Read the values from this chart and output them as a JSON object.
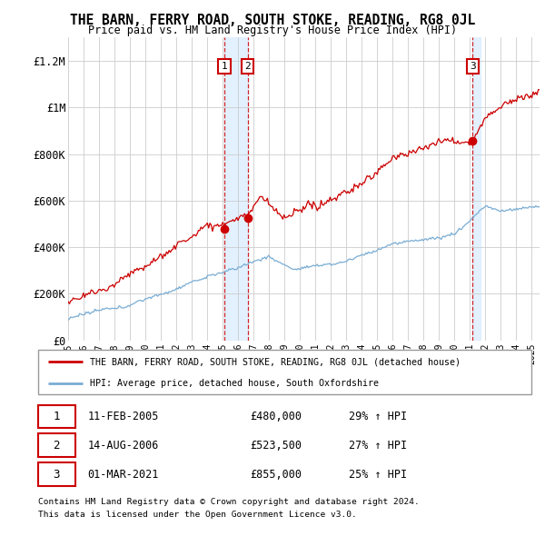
{
  "title": "THE BARN, FERRY ROAD, SOUTH STOKE, READING, RG8 0JL",
  "subtitle": "Price paid vs. HM Land Registry's House Price Index (HPI)",
  "legend_label_red": "THE BARN, FERRY ROAD, SOUTH STOKE, READING, RG8 0JL (detached house)",
  "legend_label_blue": "HPI: Average price, detached house, South Oxfordshire",
  "transactions": [
    {
      "num": 1,
      "date": "11-FEB-2005",
      "price": 480000,
      "hpi_pct": "29% ↑ HPI",
      "year": 2005.12
    },
    {
      "num": 2,
      "date": "14-AUG-2006",
      "price": 523500,
      "hpi_pct": "27% ↑ HPI",
      "year": 2006.62
    },
    {
      "num": 3,
      "date": "01-MAR-2021",
      "price": 855000,
      "hpi_pct": "25% ↑ HPI",
      "year": 2021.17
    }
  ],
  "footer1": "Contains HM Land Registry data © Crown copyright and database right 2024.",
  "footer2": "This data is licensed under the Open Government Licence v3.0.",
  "ylim": [
    0,
    1300000
  ],
  "yticks": [
    0,
    200000,
    400000,
    600000,
    800000,
    1000000,
    1200000
  ],
  "ytick_labels": [
    "£0",
    "£200K",
    "£400K",
    "£600K",
    "£800K",
    "£1M",
    "£1.2M"
  ],
  "red_color": "#cc0000",
  "blue_color": "#7aadd4",
  "shade_color": "#ddeeff",
  "vline_color": "#cc0000",
  "background_color": "#ffffff",
  "grid_color": "#cccccc",
  "xlim_start": 1995.0,
  "xlim_end": 2025.5
}
